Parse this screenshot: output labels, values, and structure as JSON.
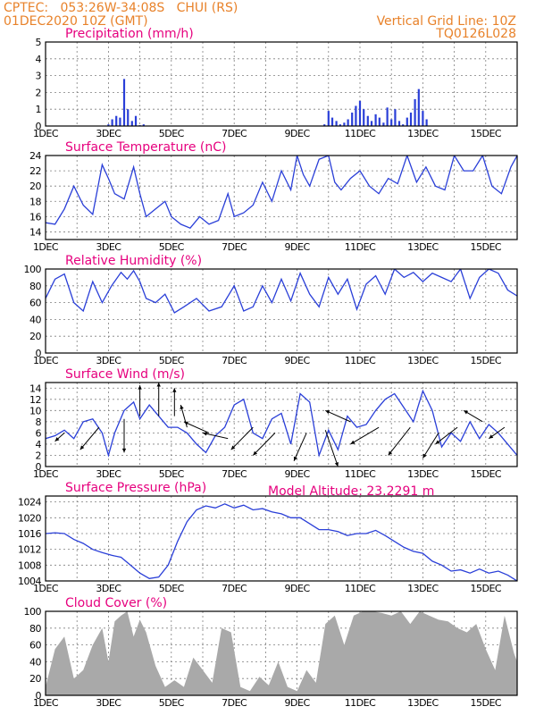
{
  "header": {
    "line1": "CPTEC:   053:26W-34:08S   CHUI (RS)",
    "line2": "01DEC2020 10Z (GMT)",
    "grid_note": "Vertical Grid Line: 10Z",
    "model_code": "TQ0126L028"
  },
  "model_altitude": "Model Altitude: 23.2291 m",
  "x_labels": [
    "1DEC",
    "3DEC",
    "5DEC",
    "7DEC",
    "9DEC",
    "11DEC",
    "13DEC",
    "15DEC"
  ],
  "x_label_days": [
    0,
    2,
    4,
    6,
    8,
    10,
    12,
    14
  ],
  "x_range_days": [
    0,
    15
  ],
  "colors": {
    "series": "#2a3fd8",
    "title": "#e6007e",
    "header": "#e8822a",
    "cloud": "#a9a9a9"
  },
  "chart_data": [
    {
      "id": "precip",
      "type": "bar",
      "title": "Precipitation (mm/h)",
      "ylim": [
        0,
        5
      ],
      "yticks": [
        0,
        1,
        2,
        3,
        4,
        5
      ],
      "grid": true,
      "x": [
        2.0,
        2.12,
        2.25,
        2.37,
        2.5,
        2.62,
        2.75,
        2.87,
        3.0,
        3.12,
        8.87,
        9.0,
        9.12,
        9.25,
        9.37,
        9.5,
        9.62,
        9.75,
        9.87,
        10.0,
        10.12,
        10.25,
        10.37,
        10.5,
        10.62,
        10.75,
        10.87,
        11.0,
        11.12,
        11.25,
        11.37,
        11.5,
        11.62,
        11.75,
        11.87,
        12.0,
        12.12
      ],
      "values": [
        0.1,
        0.4,
        0.6,
        0.5,
        2.8,
        1.0,
        0.3,
        0.6,
        0.05,
        0.1,
        0.1,
        0.9,
        0.5,
        0.3,
        0.1,
        0.2,
        0.4,
        0.8,
        1.2,
        1.5,
        1.0,
        0.6,
        0.3,
        0.7,
        0.5,
        0.2,
        1.1,
        0.4,
        1.0,
        0.3,
        0.1,
        0.5,
        0.8,
        1.6,
        2.2,
        0.9,
        0.4
      ]
    },
    {
      "id": "temp",
      "type": "line",
      "title": "Surface Temperature (nC)",
      "ylim": [
        13,
        24
      ],
      "yticks": [
        14,
        16,
        18,
        20,
        22,
        24
      ],
      "grid": true,
      "x": [
        0.0,
        0.3,
        0.6,
        0.9,
        1.2,
        1.5,
        1.8,
        2.0,
        2.2,
        2.5,
        2.8,
        3.0,
        3.2,
        3.5,
        3.8,
        4.0,
        4.3,
        4.6,
        4.9,
        5.2,
        5.5,
        5.8,
        6.0,
        6.3,
        6.6,
        6.9,
        7.2,
        7.5,
        7.8,
        8.0,
        8.2,
        8.4,
        8.7,
        9.0,
        9.2,
        9.4,
        9.7,
        10.0,
        10.3,
        10.6,
        10.9,
        11.2,
        11.5,
        11.8,
        12.1,
        12.4,
        12.7,
        13.0,
        13.3,
        13.6,
        13.9,
        14.2,
        14.5,
        14.8,
        15.0
      ],
      "values": [
        15.2,
        15.0,
        17.0,
        20.0,
        17.5,
        16.3,
        22.8,
        21.0,
        19.0,
        18.3,
        22.5,
        19.0,
        16.0,
        17.0,
        18.0,
        16.0,
        15.0,
        14.5,
        16.0,
        15.0,
        15.5,
        19.0,
        16.0,
        16.5,
        17.5,
        20.5,
        18.0,
        22.0,
        19.5,
        24.0,
        21.5,
        20.0,
        23.5,
        24.0,
        20.5,
        19.5,
        21.0,
        22.0,
        20.0,
        19.0,
        21.0,
        20.3,
        24.0,
        20.5,
        22.5,
        20.0,
        19.5,
        24.0,
        22.0,
        22.0,
        24.0,
        20.0,
        19.0,
        22.5,
        24.0
      ]
    },
    {
      "id": "rh",
      "type": "line",
      "title": "Relative Humidity (%)",
      "ylim": [
        0,
        100
      ],
      "yticks": [
        0,
        20,
        40,
        60,
        80,
        100
      ],
      "grid": true,
      "x": [
        0.0,
        0.3,
        0.6,
        0.9,
        1.2,
        1.5,
        1.8,
        2.1,
        2.4,
        2.6,
        2.8,
        3.0,
        3.2,
        3.5,
        3.8,
        4.1,
        4.4,
        4.8,
        5.2,
        5.6,
        6.0,
        6.3,
        6.6,
        6.9,
        7.2,
        7.5,
        7.8,
        8.1,
        8.4,
        8.7,
        9.0,
        9.3,
        9.6,
        9.9,
        10.2,
        10.5,
        10.8,
        11.1,
        11.4,
        11.7,
        12.0,
        12.3,
        12.6,
        12.9,
        13.2,
        13.5,
        13.8,
        14.1,
        14.4,
        14.7,
        15.0
      ],
      "values": [
        65,
        88,
        94,
        60,
        50,
        85,
        60,
        80,
        96,
        88,
        98,
        85,
        65,
        60,
        70,
        48,
        55,
        65,
        50,
        55,
        80,
        50,
        55,
        80,
        60,
        88,
        62,
        95,
        70,
        55,
        90,
        70,
        88,
        52,
        82,
        92,
        70,
        100,
        90,
        96,
        85,
        95,
        90,
        85,
        100,
        65,
        90,
        100,
        95,
        75,
        68
      ]
    },
    {
      "id": "wind",
      "type": "line",
      "title": "Surface Wind (m/s)",
      "ylim": [
        0,
        15
      ],
      "yticks": [
        0,
        2,
        4,
        6,
        8,
        10,
        12,
        14
      ],
      "grid": true,
      "x": [
        0.0,
        0.3,
        0.6,
        0.9,
        1.2,
        1.5,
        1.8,
        2.0,
        2.2,
        2.5,
        2.8,
        3.0,
        3.3,
        3.6,
        3.9,
        4.2,
        4.5,
        4.8,
        5.1,
        5.4,
        5.7,
        6.0,
        6.3,
        6.6,
        6.9,
        7.2,
        7.5,
        7.8,
        8.1,
        8.4,
        8.7,
        9.0,
        9.3,
        9.6,
        9.9,
        10.2,
        10.5,
        10.8,
        11.1,
        11.4,
        11.7,
        12.0,
        12.3,
        12.6,
        12.9,
        13.2,
        13.5,
        13.8,
        14.1,
        14.4,
        14.7,
        15.0
      ],
      "values": [
        5.0,
        5.5,
        6.5,
        5.0,
        8.0,
        8.5,
        6.0,
        2.0,
        6.0,
        10.0,
        11.5,
        8.5,
        11.0,
        9.0,
        7.0,
        7.0,
        6.0,
        4.0,
        2.5,
        5.5,
        7.0,
        11.0,
        12.0,
        6.0,
        5.0,
        8.5,
        9.5,
        4.0,
        13.0,
        11.5,
        2.0,
        6.5,
        3.0,
        9.0,
        7.0,
        7.5,
        10.0,
        12.0,
        13.0,
        10.5,
        8.0,
        13.5,
        10.0,
        3.5,
        6.0,
        4.5,
        8.0,
        5.0,
        7.5,
        6.0,
        4.0,
        2.0
      ]
    },
    {
      "id": "pressure",
      "type": "line",
      "title": "Surface Pressure (hPa)",
      "ylim": [
        1004,
        1025.5
      ],
      "yticks": [
        1004,
        1008,
        1012,
        1016,
        1020,
        1024
      ],
      "grid": true,
      "x": [
        0.0,
        0.3,
        0.6,
        0.9,
        1.2,
        1.5,
        1.8,
        2.1,
        2.4,
        2.7,
        3.0,
        3.3,
        3.6,
        3.9,
        4.2,
        4.5,
        4.8,
        5.1,
        5.4,
        5.7,
        6.0,
        6.3,
        6.6,
        6.9,
        7.2,
        7.5,
        7.8,
        8.1,
        8.4,
        8.7,
        9.0,
        9.3,
        9.6,
        9.9,
        10.2,
        10.5,
        10.8,
        11.1,
        11.4,
        11.7,
        12.0,
        12.3,
        12.6,
        12.9,
        13.2,
        13.5,
        13.8,
        14.1,
        14.4,
        14.7,
        15.0
      ],
      "values": [
        1016,
        1016.2,
        1016,
        1014.5,
        1013.5,
        1012,
        1011.2,
        1010.5,
        1010,
        1008,
        1006,
        1004.6,
        1005,
        1008,
        1014,
        1019,
        1022,
        1023,
        1022.5,
        1023.5,
        1022.5,
        1023.2,
        1022,
        1022.3,
        1021.5,
        1021,
        1020,
        1020,
        1018.5,
        1017,
        1017,
        1016.5,
        1015.5,
        1016,
        1016,
        1016.8,
        1015.5,
        1014,
        1012.5,
        1011.5,
        1011,
        1009,
        1008,
        1006.5,
        1006.8,
        1006,
        1007,
        1006,
        1006.5,
        1005.5,
        1004
      ]
    },
    {
      "id": "cloud",
      "type": "area",
      "title": "Cloud Cover (%)",
      "ylim": [
        0,
        100
      ],
      "yticks": [
        0,
        20,
        40,
        60,
        80,
        100
      ],
      "grid": true,
      "x": [
        0.0,
        0.3,
        0.6,
        0.9,
        1.2,
        1.5,
        1.8,
        2.0,
        2.2,
        2.4,
        2.6,
        2.8,
        3.0,
        3.2,
        3.5,
        3.8,
        4.1,
        4.4,
        4.7,
        5.0,
        5.3,
        5.6,
        5.9,
        6.2,
        6.5,
        6.8,
        7.1,
        7.4,
        7.7,
        8.0,
        8.3,
        8.6,
        8.9,
        9.2,
        9.5,
        9.8,
        10.1,
        10.4,
        10.7,
        11.0,
        11.3,
        11.6,
        11.9,
        12.2,
        12.5,
        12.8,
        13.1,
        13.4,
        13.7,
        14.0,
        14.3,
        14.6,
        14.9,
        15.0
      ],
      "values": [
        10,
        55,
        70,
        20,
        30,
        60,
        80,
        40,
        88,
        95,
        100,
        70,
        90,
        75,
        35,
        10,
        18,
        10,
        45,
        30,
        15,
        80,
        75,
        10,
        5,
        22,
        12,
        40,
        10,
        5,
        30,
        15,
        85,
        95,
        60,
        95,
        100,
        100,
        98,
        95,
        100,
        85,
        100,
        95,
        90,
        88,
        80,
        75,
        85,
        55,
        30,
        95,
        50,
        40
      ]
    }
  ],
  "wind_arrows": [
    {
      "x": 0.6,
      "base": 6.0,
      "dx": -0.3,
      "dy": -1.5
    },
    {
      "x": 1.7,
      "base": 7.0,
      "dx": -0.6,
      "dy": -4.0
    },
    {
      "x": 2.5,
      "base": 8.5,
      "dx": 0.0,
      "dy": -6.0
    },
    {
      "x": 3.0,
      "base": 9.0,
      "dx": 0.0,
      "dy": 5.5
    },
    {
      "x": 3.6,
      "base": 9.0,
      "dx": 0.0,
      "dy": 6.0
    },
    {
      "x": 4.1,
      "base": 9.0,
      "dx": 0.0,
      "dy": 5.0
    },
    {
      "x": 4.5,
      "base": 7.0,
      "dx": -0.2,
      "dy": 4.0
    },
    {
      "x": 5.2,
      "base": 6.0,
      "dx": -0.8,
      "dy": 2.0
    },
    {
      "x": 5.8,
      "base": 5.0,
      "dx": -0.8,
      "dy": 1.0
    },
    {
      "x": 6.6,
      "base": 7.0,
      "dx": -0.7,
      "dy": -4.0
    },
    {
      "x": 7.3,
      "base": 6.0,
      "dx": -0.7,
      "dy": -4.0
    },
    {
      "x": 8.3,
      "base": 6.0,
      "dx": -0.4,
      "dy": -5.0
    },
    {
      "x": 8.9,
      "base": 6.5,
      "dx": 0.4,
      "dy": -6.5
    },
    {
      "x": 9.7,
      "base": 8.0,
      "dx": -0.8,
      "dy": 2.0
    },
    {
      "x": 10.6,
      "base": 7.0,
      "dx": -0.9,
      "dy": -3.0
    },
    {
      "x": 11.6,
      "base": 7.0,
      "dx": -0.7,
      "dy": -5.0
    },
    {
      "x": 12.5,
      "base": 6.0,
      "dx": -0.5,
      "dy": -4.5
    },
    {
      "x": 13.1,
      "base": 7.0,
      "dx": -0.7,
      "dy": -3.0
    },
    {
      "x": 13.9,
      "base": 8.0,
      "dx": -0.6,
      "dy": 2.0
    },
    {
      "x": 14.6,
      "base": 7.0,
      "dx": -0.5,
      "dy": -2.0
    }
  ]
}
